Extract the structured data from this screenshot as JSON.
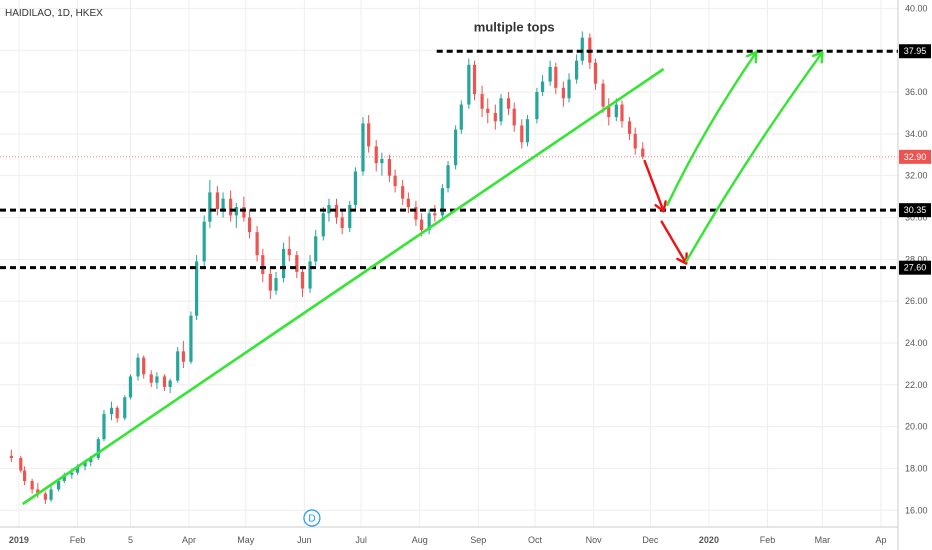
{
  "chart_data": {
    "type": "candlestick",
    "title": "HAIDILAO, 1D, HKEX",
    "ylim": [
      15.2,
      40.4
    ],
    "y_ticks": [
      "16.00",
      "18.00",
      "20.00",
      "22.00",
      "24.00",
      "26.00",
      "28.00",
      "30.00",
      "32.00",
      "34.00",
      "36.00",
      "38.00",
      "40.00"
    ],
    "x_ticks": [
      "2019",
      "Feb",
      "5",
      "Apr",
      "May",
      "Jun",
      "Jul",
      "Aug",
      "Sep",
      "Oct",
      "Nov",
      "Dec",
      "2020",
      "Feb",
      "Mar",
      "Ap"
    ],
    "last_price": 32.9,
    "levels": [
      {
        "label": "37.95",
        "value": 37.95
      },
      {
        "label": "30.35",
        "value": 30.35
      },
      {
        "label": "27.60",
        "value": 27.6
      }
    ],
    "last_price_label": "32.90",
    "annotation": "multiple tops",
    "event_marker": "D",
    "trendline": {
      "from": [
        "2019-01-03",
        16.3
      ],
      "to": [
        "2019-12-08",
        37.1
      ]
    },
    "projections": {
      "down": [
        [
          "2019-11-28",
          32.7,
          "2019-12-08",
          30.3
        ],
        [
          "2019-12-07",
          29.8,
          "2019-12-20",
          27.8
        ]
      ],
      "up": [
        [
          "2019-12-10",
          30.6,
          "2020-01-26",
          37.9
        ],
        [
          "2019-12-20",
          27.9,
          "2020-03-01",
          37.9
        ]
      ]
    },
    "candles": [
      [
        "2018-12-28",
        18.6,
        18.9,
        18.3,
        18.5
      ],
      [
        "2019-01-02",
        18.5,
        18.6,
        17.8,
        17.9
      ],
      [
        "2019-01-04",
        17.9,
        18.1,
        17.2,
        17.4
      ],
      [
        "2019-01-08",
        17.4,
        17.5,
        16.8,
        17.0
      ],
      [
        "2019-01-11",
        17.0,
        17.3,
        16.6,
        16.8
      ],
      [
        "2019-01-15",
        16.8,
        16.9,
        16.3,
        16.5
      ],
      [
        "2019-01-18",
        16.5,
        17.2,
        16.4,
        17.0
      ],
      [
        "2019-01-22",
        17.0,
        17.5,
        16.9,
        17.4
      ],
      [
        "2019-01-25",
        17.4,
        17.8,
        17.3,
        17.7
      ],
      [
        "2019-01-29",
        17.7,
        18.0,
        17.5,
        17.8
      ],
      [
        "2019-02-01",
        17.8,
        18.2,
        17.7,
        18.1
      ],
      [
        "2019-02-05",
        18.1,
        18.4,
        17.9,
        18.3
      ],
      [
        "2019-02-08",
        18.3,
        18.6,
        18.1,
        18.5
      ],
      [
        "2019-02-12",
        18.5,
        19.5,
        18.4,
        19.4
      ],
      [
        "2019-02-15",
        19.4,
        20.8,
        19.3,
        20.6
      ],
      [
        "2019-02-19",
        20.6,
        21.2,
        20.3,
        20.9
      ],
      [
        "2019-02-22",
        20.9,
        21.0,
        20.2,
        20.4
      ],
      [
        "2019-02-26",
        20.4,
        21.5,
        20.3,
        21.4
      ],
      [
        "2019-03-01",
        21.4,
        22.5,
        21.3,
        22.4
      ],
      [
        "2019-03-05",
        22.4,
        23.5,
        22.2,
        23.3
      ],
      [
        "2019-03-08",
        23.3,
        23.4,
        22.3,
        22.5
      ],
      [
        "2019-03-12",
        22.5,
        22.7,
        21.9,
        22.1
      ],
      [
        "2019-03-15",
        22.1,
        22.6,
        21.8,
        22.4
      ],
      [
        "2019-03-19",
        22.4,
        22.5,
        21.7,
        21.9
      ],
      [
        "2019-03-22",
        21.9,
        22.3,
        21.6,
        22.2
      ],
      [
        "2019-03-26",
        22.2,
        23.8,
        22.1,
        23.6
      ],
      [
        "2019-03-29",
        23.6,
        24.1,
        22.8,
        23.1
      ],
      [
        "2019-04-02",
        23.1,
        25.5,
        23.0,
        25.3
      ],
      [
        "2019-04-05",
        25.3,
        28.2,
        25.1,
        27.9
      ],
      [
        "2019-04-09",
        27.9,
        30.1,
        27.6,
        29.8
      ],
      [
        "2019-04-12",
        29.8,
        31.8,
        29.5,
        31.2
      ],
      [
        "2019-04-16",
        31.2,
        31.5,
        30.1,
        30.4
      ],
      [
        "2019-04-19",
        30.4,
        31.2,
        30.0,
        30.9
      ],
      [
        "2019-04-23",
        30.9,
        31.3,
        29.8,
        30.1
      ],
      [
        "2019-04-26",
        30.1,
        30.7,
        29.5,
        30.5
      ],
      [
        "2019-04-30",
        30.5,
        31.0,
        29.8,
        30.0
      ],
      [
        "2019-05-03",
        30.0,
        30.4,
        29.0,
        29.3
      ],
      [
        "2019-05-07",
        29.3,
        29.6,
        27.9,
        28.2
      ],
      [
        "2019-05-10",
        28.2,
        28.5,
        26.9,
        27.3
      ],
      [
        "2019-05-14",
        27.3,
        27.6,
        26.1,
        26.5
      ],
      [
        "2019-05-17",
        26.5,
        27.4,
        26.3,
        27.1
      ],
      [
        "2019-05-21",
        27.1,
        28.8,
        26.9,
        28.5
      ],
      [
        "2019-05-24",
        28.5,
        29.1,
        27.9,
        28.2
      ],
      [
        "2019-05-28",
        28.2,
        28.4,
        27.1,
        27.4
      ],
      [
        "2019-05-31",
        27.4,
        27.6,
        26.2,
        26.6
      ],
      [
        "2019-06-04",
        26.6,
        28.2,
        26.4,
        27.9
      ],
      [
        "2019-06-07",
        27.9,
        29.4,
        27.7,
        29.1
      ],
      [
        "2019-06-11",
        29.1,
        30.5,
        28.9,
        30.2
      ],
      [
        "2019-06-14",
        30.2,
        30.9,
        29.8,
        30.6
      ],
      [
        "2019-06-18",
        30.6,
        30.9,
        29.7,
        30.0
      ],
      [
        "2019-06-21",
        30.0,
        30.3,
        29.2,
        29.5
      ],
      [
        "2019-06-25",
        29.5,
        30.8,
        29.3,
        30.6
      ],
      [
        "2019-06-28",
        30.6,
        32.4,
        30.4,
        32.2
      ],
      [
        "2019-07-02",
        32.2,
        34.8,
        32.0,
        34.5
      ],
      [
        "2019-07-05",
        34.5,
        34.9,
        33.1,
        33.4
      ],
      [
        "2019-07-09",
        33.4,
        33.7,
        32.2,
        32.6
      ],
      [
        "2019-07-12",
        32.6,
        33.1,
        32.0,
        32.8
      ],
      [
        "2019-07-16",
        32.8,
        33.0,
        31.7,
        32.0
      ],
      [
        "2019-07-19",
        32.0,
        32.3,
        31.2,
        31.5
      ],
      [
        "2019-07-23",
        31.5,
        31.8,
        30.6,
        30.9
      ],
      [
        "2019-07-26",
        30.9,
        31.2,
        30.2,
        30.5
      ],
      [
        "2019-07-30",
        30.5,
        30.8,
        29.6,
        29.9
      ],
      [
        "2019-08-02",
        29.9,
        30.2,
        29.1,
        29.4
      ],
      [
        "2019-08-06",
        29.4,
        30.4,
        29.2,
        30.2
      ],
      [
        "2019-08-09",
        30.2,
        30.6,
        29.8,
        30.1
      ],
      [
        "2019-08-13",
        30.1,
        31.6,
        29.9,
        31.4
      ],
      [
        "2019-08-16",
        31.4,
        32.7,
        31.2,
        32.5
      ],
      [
        "2019-08-20",
        32.5,
        34.4,
        32.3,
        34.2
      ],
      [
        "2019-08-23",
        34.2,
        35.6,
        34.0,
        35.4
      ],
      [
        "2019-08-27",
        35.4,
        37.6,
        35.2,
        37.3
      ],
      [
        "2019-08-30",
        37.3,
        37.5,
        35.6,
        35.9
      ],
      [
        "2019-09-03",
        35.9,
        36.3,
        34.8,
        35.2
      ],
      [
        "2019-09-06",
        35.2,
        35.7,
        34.5,
        35.0
      ],
      [
        "2019-09-10",
        35.0,
        35.4,
        34.2,
        34.6
      ],
      [
        "2019-09-13",
        34.6,
        35.9,
        34.4,
        35.7
      ],
      [
        "2019-09-17",
        35.7,
        36.0,
        34.9,
        35.2
      ],
      [
        "2019-09-20",
        35.2,
        35.5,
        34.1,
        34.4
      ],
      [
        "2019-09-24",
        34.4,
        34.7,
        33.3,
        33.6
      ],
      [
        "2019-09-27",
        33.6,
        34.9,
        33.4,
        34.7
      ],
      [
        "2019-10-02",
        34.7,
        36.2,
        34.5,
        36.0
      ],
      [
        "2019-10-05",
        36.0,
        36.8,
        35.8,
        36.5
      ],
      [
        "2019-10-09",
        36.5,
        37.5,
        36.3,
        37.2
      ],
      [
        "2019-10-12",
        37.2,
        37.4,
        35.9,
        36.2
      ],
      [
        "2019-10-16",
        36.2,
        36.5,
        35.3,
        35.7
      ],
      [
        "2019-10-19",
        35.7,
        36.9,
        35.5,
        36.6
      ],
      [
        "2019-10-23",
        36.6,
        37.8,
        36.4,
        37.5
      ],
      [
        "2019-10-26",
        37.5,
        38.9,
        37.3,
        38.6
      ],
      [
        "2019-10-30",
        38.6,
        38.8,
        37.1,
        37.4
      ],
      [
        "2019-11-02",
        37.4,
        37.6,
        36.1,
        36.4
      ],
      [
        "2019-11-06",
        36.4,
        36.6,
        35.0,
        35.3
      ],
      [
        "2019-11-09",
        35.3,
        35.7,
        34.4,
        34.8
      ],
      [
        "2019-11-13",
        34.8,
        35.7,
        34.6,
        35.4
      ],
      [
        "2019-11-16",
        35.4,
        35.6,
        34.3,
        34.6
      ],
      [
        "2019-11-20",
        34.6,
        34.8,
        33.7,
        34.0
      ],
      [
        "2019-11-23",
        34.0,
        34.3,
        33.0,
        33.3
      ],
      [
        "2019-11-27",
        33.3,
        33.6,
        32.8,
        32.9
      ]
    ]
  }
}
